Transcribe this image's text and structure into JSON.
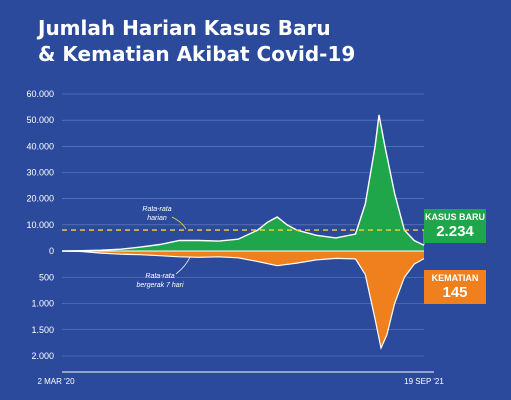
{
  "title": {
    "line1": "Jumlah Harian Kasus Baru",
    "line2": "& Kematian Akibat Covid-19"
  },
  "colors": {
    "background": "#2b4a9c",
    "cases": "#1fa64a",
    "deaths": "#f0801e",
    "average_line": "#ffffff",
    "highlight": "#f5d33a",
    "axis_text": "#ffffff"
  },
  "callouts": {
    "cases_label": "KASUS BARU",
    "cases_value": "2.234",
    "deaths_label": "KEMATIAN",
    "deaths_value": "145"
  },
  "chart_data": {
    "type": "area",
    "x_start_label": "2 MAR '20",
    "x_end_label": "19 SEP '21",
    "cases_y_ticks": [
      "60.000",
      "50.000",
      "40.000",
      "30.000",
      "20.000",
      "10.000",
      "0"
    ],
    "deaths_y_ticks": [
      "500",
      "1.000",
      "1.500",
      "2.000"
    ],
    "ylim_cases": [
      0,
      60000
    ],
    "ylim_deaths": [
      0,
      2000
    ],
    "reference_line_cases": 8000,
    "annotations": {
      "daily_average": "Rata-rata harian",
      "moving_average": "Rata-rata bergerak 7 hari"
    },
    "series": [
      {
        "name": "KASUS BARU",
        "x_months": [
          0,
          1,
          2,
          3,
          4,
          5,
          6,
          7,
          8,
          9,
          10,
          10.5,
          11,
          11.5,
          12,
          13,
          14,
          15,
          15.5,
          16,
          16.2,
          16.5,
          17,
          17.5,
          18,
          18.5
        ],
        "values": [
          10,
          100,
          300,
          700,
          1500,
          2500,
          4000,
          4000,
          3800,
          4500,
          8000,
          11000,
          13000,
          10000,
          8000,
          6000,
          5000,
          6500,
          18000,
          40000,
          52000,
          40000,
          22000,
          8000,
          4000,
          2234
        ]
      },
      {
        "name": "KEMATIAN",
        "x_months": [
          0,
          1,
          2,
          3,
          4,
          5,
          6,
          7,
          8,
          9,
          10,
          11,
          12,
          13,
          14,
          15,
          15.5,
          16,
          16.3,
          16.6,
          17,
          17.5,
          18,
          18.5
        ],
        "values": [
          2,
          10,
          40,
          60,
          70,
          90,
          110,
          120,
          110,
          130,
          200,
          280,
          230,
          170,
          140,
          150,
          450,
          1300,
          1850,
          1600,
          1000,
          500,
          250,
          145
        ]
      }
    ]
  }
}
